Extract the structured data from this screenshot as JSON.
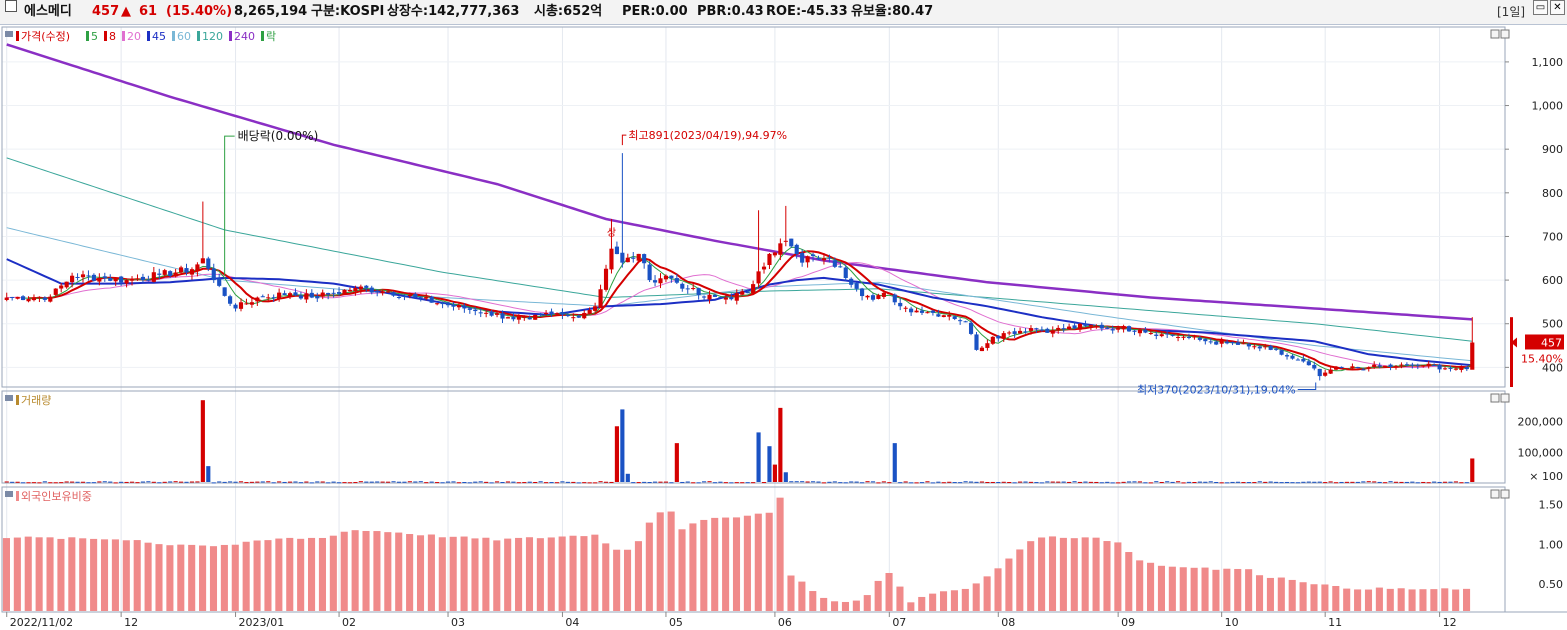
{
  "header": {
    "stock_name": "에스메디",
    "price": "457",
    "change_arrow": "▲",
    "change": "61",
    "change_pct": "(15.40%)",
    "volume": "8,265,194",
    "market": "구분:KOSPI",
    "listed_shares": "상장수:142,777,363",
    "market_cap": "시총:652억",
    "per": "PER:0.00",
    "pbr": "PBR:0.43",
    "roe": "ROE:-45.33",
    "float_ratio": "유보율:80.47",
    "period_button": "[1일]",
    "colors": {
      "up": "#d40000",
      "down": "#1a52c4"
    }
  },
  "chart_data": [
    {
      "type": "candlestick",
      "legend": [
        {
          "label": "가격(수정)",
          "color": "#d40000"
        },
        {
          "label": "5",
          "color": "#2ea043"
        },
        {
          "label": "8",
          "color": "#d40000"
        },
        {
          "label": "20",
          "color": "#e06fd0"
        },
        {
          "label": "45",
          "color": "#1c2fc4"
        },
        {
          "label": "60",
          "color": "#79b7d6"
        },
        {
          "label": "120",
          "color": "#3aa69a"
        },
        {
          "label": "240",
          "color": "#8a2fc4"
        },
        {
          "label": "락",
          "color": "#2ea043"
        }
      ],
      "y_ticks": [
        400,
        500,
        600,
        700,
        800,
        900,
        1000,
        1100
      ],
      "y_tick_labels": [
        "400",
        "500",
        "600",
        "700",
        "800",
        "900",
        "1,000",
        "1,100"
      ],
      "ylim": [
        355,
        1180
      ],
      "x_ticks": [
        {
          "label": "2022/11/02",
          "idx": 0
        },
        {
          "label": "12",
          "idx": 21
        },
        {
          "label": "2023/01",
          "idx": 42
        },
        {
          "label": "02",
          "idx": 61
        },
        {
          "label": "03",
          "idx": 81
        },
        {
          "label": "04",
          "idx": 102
        },
        {
          "label": "05",
          "idx": 121
        },
        {
          "label": "06",
          "idx": 141
        },
        {
          "label": "07",
          "idx": 162
        },
        {
          "label": "08",
          "idx": 182
        },
        {
          "label": "09",
          "idx": 204
        },
        {
          "label": "10",
          "idx": 223
        },
        {
          "label": "11",
          "idx": 242
        },
        {
          "label": "12",
          "idx": 263
        }
      ],
      "n_days": 270,
      "close_anchors": [
        [
          0,
          560
        ],
        [
          8,
          562
        ],
        [
          12,
          610
        ],
        [
          17,
          605
        ],
        [
          22,
          600
        ],
        [
          28,
          612
        ],
        [
          34,
          625
        ],
        [
          36,
          650
        ],
        [
          38,
          600
        ],
        [
          42,
          535
        ],
        [
          46,
          560
        ],
        [
          52,
          570
        ],
        [
          56,
          560
        ],
        [
          60,
          570
        ],
        [
          64,
          582
        ],
        [
          70,
          574
        ],
        [
          75,
          560
        ],
        [
          80,
          545
        ],
        [
          84,
          535
        ],
        [
          88,
          525
        ],
        [
          92,
          515
        ],
        [
          96,
          510
        ],
        [
          100,
          522
        ],
        [
          104,
          515
        ],
        [
          108,
          540
        ],
        [
          111,
          672
        ],
        [
          113,
          640
        ],
        [
          116,
          660
        ],
        [
          118,
          600
        ],
        [
          121,
          610
        ],
        [
          125,
          580
        ],
        [
          128,
          560
        ],
        [
          132,
          560
        ],
        [
          136,
          570
        ],
        [
          138,
          620
        ],
        [
          140,
          660
        ],
        [
          143,
          690
        ],
        [
          146,
          640
        ],
        [
          148,
          655
        ],
        [
          150,
          650
        ],
        [
          153,
          630
        ],
        [
          156,
          580
        ],
        [
          159,
          555
        ],
        [
          162,
          570
        ],
        [
          164,
          540
        ],
        [
          167,
          530
        ],
        [
          170,
          525
        ],
        [
          173,
          520
        ],
        [
          176,
          505
        ],
        [
          178,
          440
        ],
        [
          181,
          470
        ],
        [
          184,
          480
        ],
        [
          188,
          490
        ],
        [
          192,
          485
        ],
        [
          198,
          495
        ],
        [
          204,
          490
        ],
        [
          208,
          487
        ],
        [
          212,
          476
        ],
        [
          216,
          470
        ],
        [
          220,
          460
        ],
        [
          224,
          455
        ],
        [
          228,
          448
        ],
        [
          232,
          440
        ],
        [
          236,
          420
        ],
        [
          239,
          405
        ],
        [
          241,
          380
        ],
        [
          243,
          395
        ],
        [
          246,
          398
        ],
        [
          250,
          400
        ],
        [
          255,
          403
        ],
        [
          260,
          405
        ],
        [
          265,
          398
        ],
        [
          268,
          396
        ],
        [
          269,
          457
        ]
      ],
      "ma240_anchors": [
        [
          0,
          1140
        ],
        [
          30,
          1020
        ],
        [
          60,
          910
        ],
        [
          90,
          820
        ],
        [
          110,
          740
        ],
        [
          130,
          690
        ],
        [
          150,
          645
        ],
        [
          180,
          595
        ],
        [
          210,
          560
        ],
        [
          240,
          535
        ],
        [
          269,
          510
        ]
      ],
      "ma120_anchors": [
        [
          0,
          880
        ],
        [
          40,
          715
        ],
        [
          80,
          618
        ],
        [
          110,
          560
        ],
        [
          140,
          575
        ],
        [
          160,
          580
        ],
        [
          200,
          540
        ],
        [
          240,
          500
        ],
        [
          269,
          460
        ]
      ],
      "ma60_anchors": [
        [
          0,
          720
        ],
        [
          40,
          600
        ],
        [
          80,
          560
        ],
        [
          110,
          540
        ],
        [
          140,
          585
        ],
        [
          160,
          595
        ],
        [
          200,
          520
        ],
        [
          240,
          450
        ],
        [
          269,
          415
        ]
      ],
      "ma45_anchors": [
        [
          0,
          648
        ],
        [
          10,
          592
        ],
        [
          20,
          592
        ],
        [
          30,
          595
        ],
        [
          40,
          605
        ],
        [
          50,
          602
        ],
        [
          60,
          592
        ],
        [
          70,
          570
        ],
        [
          80,
          548
        ],
        [
          90,
          528
        ],
        [
          100,
          520
        ],
        [
          110,
          540
        ],
        [
          120,
          545
        ],
        [
          130,
          555
        ],
        [
          140,
          590
        ],
        [
          145,
          600
        ],
        [
          150,
          605
        ],
        [
          160,
          590
        ],
        [
          170,
          560
        ],
        [
          180,
          540
        ],
        [
          190,
          515
        ],
        [
          200,
          495
        ],
        [
          210,
          485
        ],
        [
          220,
          480
        ],
        [
          230,
          470
        ],
        [
          240,
          460
        ],
        [
          250,
          430
        ],
        [
          260,
          415
        ],
        [
          269,
          405
        ]
      ],
      "annotations": [
        {
          "text": "최고891(2023/04/19),94.97%",
          "idx": 113,
          "value": 891
        },
        {
          "text": "최저370(2023/10/31),19.04%",
          "idx": 241,
          "value": 370
        },
        {
          "text": "배당락(0.00%)",
          "idx": 40,
          "value": 610
        },
        {
          "text": "상",
          "idx": 111,
          "value": 735
        }
      ],
      "last_price_label": "457",
      "last_pct_label": "15.40%"
    },
    {
      "type": "bar",
      "title": "거래량",
      "y_ticks": [
        100000,
        200000
      ],
      "y_tick_labels": [
        "100,000",
        "200,000"
      ],
      "unit_label": "× 100",
      "ylim": [
        0,
        300000
      ],
      "spikes": [
        [
          36,
          270000,
          "up"
        ],
        [
          37,
          55000,
          "down"
        ],
        [
          112,
          185000,
          "up"
        ],
        [
          113,
          240000,
          "down"
        ],
        [
          114,
          30000,
          "down"
        ],
        [
          123,
          130000,
          "up"
        ],
        [
          138,
          165000,
          "down"
        ],
        [
          140,
          120000,
          "down"
        ],
        [
          141,
          60000,
          "up"
        ],
        [
          142,
          245000,
          "up"
        ],
        [
          143,
          35000,
          "down"
        ],
        [
          163,
          130000,
          "down"
        ],
        [
          269,
          80000,
          "up"
        ]
      ],
      "base_volume": 4000
    },
    {
      "type": "bar",
      "title": "외국인보유비중",
      "y_ticks": [
        0.5,
        1.0,
        1.5
      ],
      "y_tick_labels": [
        "0.50",
        "1.00",
        "1.50"
      ],
      "ylim": [
        0.15,
        1.72
      ],
      "value_anchors": [
        [
          0,
          1.09
        ],
        [
          15,
          1.07
        ],
        [
          24,
          1.06
        ],
        [
          27,
          1.0
        ],
        [
          34,
          1.0
        ],
        [
          38,
          0.98
        ],
        [
          42,
          1.0
        ],
        [
          50,
          1.07
        ],
        [
          58,
          1.08
        ],
        [
          63,
          1.18
        ],
        [
          70,
          1.16
        ],
        [
          80,
          1.1
        ],
        [
          90,
          1.06
        ],
        [
          100,
          1.09
        ],
        [
          108,
          1.12
        ],
        [
          113,
          0.88
        ],
        [
          116,
          1.05
        ],
        [
          119,
          1.4
        ],
        [
          122,
          1.42
        ],
        [
          124,
          1.2
        ],
        [
          128,
          1.3
        ],
        [
          136,
          1.37
        ],
        [
          141,
          1.4
        ],
        [
          142,
          1.6
        ],
        [
          143,
          0.65
        ],
        [
          147,
          0.48
        ],
        [
          150,
          0.32
        ],
        [
          155,
          0.26
        ],
        [
          158,
          0.35
        ],
        [
          160,
          0.55
        ],
        [
          163,
          0.68
        ],
        [
          165,
          0.25
        ],
        [
          168,
          0.35
        ],
        [
          172,
          0.4
        ],
        [
          177,
          0.45
        ],
        [
          182,
          0.7
        ],
        [
          186,
          0.95
        ],
        [
          190,
          1.1
        ],
        [
          194,
          1.08
        ],
        [
          199,
          1.1
        ],
        [
          204,
          1.02
        ],
        [
          208,
          0.8
        ],
        [
          213,
          0.72
        ],
        [
          218,
          0.72
        ],
        [
          223,
          0.68
        ],
        [
          227,
          0.7
        ],
        [
          231,
          0.6
        ],
        [
          236,
          0.56
        ],
        [
          241,
          0.5
        ],
        [
          245,
          0.45
        ],
        [
          255,
          0.44
        ],
        [
          269,
          0.43
        ]
      ]
    }
  ]
}
